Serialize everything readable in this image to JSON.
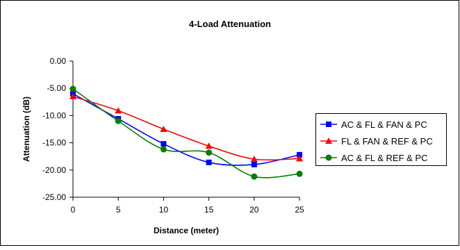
{
  "chart_data": {
    "type": "line",
    "title": "4-Load Attenuation",
    "xlabel": "Distance (meter)",
    "ylabel": "Attenuation (dB)",
    "x": [
      0,
      5,
      10,
      15,
      20,
      25
    ],
    "xlim": [
      0,
      25
    ],
    "ylim": [
      -25,
      0
    ],
    "x_ticks": [
      0,
      5,
      10,
      15,
      20,
      25
    ],
    "y_ticks": [
      0,
      -5,
      -10,
      -15,
      -20,
      -25
    ],
    "x_tick_labels": [
      "0",
      "5",
      "10",
      "15",
      "20",
      "25"
    ],
    "y_tick_labels": [
      "0.00",
      "-5.00",
      "-10.00",
      "-15.00",
      "-20.00",
      "-25.00"
    ],
    "grid": false,
    "legend_position": "right",
    "series": [
      {
        "name": "AC & FL & FAN & PC",
        "color": "#0000ff",
        "marker": "square",
        "values": [
          -6.0,
          -10.6,
          -15.2,
          -18.6,
          -19.0,
          -17.2
        ]
      },
      {
        "name": "FL & FAN & REF & PC",
        "color": "#ff0000",
        "marker": "triangle",
        "values": [
          -6.5,
          -9.1,
          -12.5,
          -15.6,
          -18.0,
          -17.9
        ]
      },
      {
        "name": "AC & FL & REF & PC",
        "color": "#008000",
        "marker": "circle",
        "values": [
          -5.1,
          -11.0,
          -16.2,
          -16.8,
          -21.2,
          -20.7
        ]
      }
    ]
  }
}
